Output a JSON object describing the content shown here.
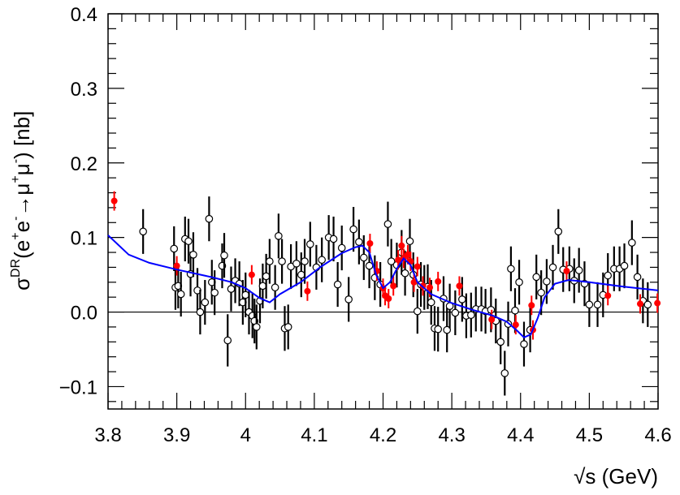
{
  "chart_data": {
    "type": "scatter",
    "title": "",
    "xlabel_html": "√s (GeV)",
    "xlabel": "√s (GeV)",
    "ylabel": "σDR(e+e−→μ+μ−) [nb]",
    "xlim": [
      3.8,
      4.6
    ],
    "ylim": [
      -0.13,
      0.4
    ],
    "xticks": [
      3.8,
      3.9,
      4.0,
      4.1,
      4.2,
      4.3,
      4.4,
      4.5,
      4.6
    ],
    "xtick_labels": [
      "3.8",
      "3.9",
      "4",
      "4.1",
      "4.2",
      "4.3",
      "4.4",
      "4.5",
      "4.6"
    ],
    "yticks": [
      -0.1,
      0.0,
      0.1,
      0.2,
      0.3,
      0.4
    ],
    "ytick_labels": [
      "−0.1",
      "0.0",
      "0.1",
      "0.2",
      "0.3",
      "0.4"
    ],
    "grid": false,
    "colors": {
      "open_series": "#000000",
      "filled_series": "#ff0000",
      "fit_curve": "#0000ff",
      "zero_line": "#000000"
    },
    "series": [
      {
        "marker": "open-circle",
        "points": [
          [
            3.851,
            0.108,
            0.03
          ],
          [
            3.896,
            0.085,
            0.03
          ],
          [
            3.898,
            0.033,
            0.03
          ],
          [
            3.902,
            0.035,
            0.03
          ],
          [
            3.906,
            0.024,
            0.03
          ],
          [
            3.912,
            0.098,
            0.03
          ],
          [
            3.917,
            0.095,
            0.03
          ],
          [
            3.92,
            0.051,
            0.03
          ],
          [
            3.924,
            0.077,
            0.03
          ],
          [
            3.93,
            0.029,
            0.03
          ],
          [
            3.934,
            0.0,
            0.03
          ],
          [
            3.941,
            0.013,
            0.03
          ],
          [
            3.947,
            0.125,
            0.03
          ],
          [
            3.951,
            0.04,
            0.03
          ],
          [
            3.955,
            0.026,
            0.03
          ],
          [
            3.966,
            0.062,
            0.03
          ],
          [
            3.969,
            0.076,
            0.03
          ],
          [
            3.974,
            -0.038,
            0.035
          ],
          [
            3.979,
            0.031,
            0.03
          ],
          [
            3.985,
            0.042,
            0.03
          ],
          [
            3.991,
            0.038,
            0.03
          ],
          [
            3.996,
            0.013,
            0.03
          ],
          [
            4.0,
            0.023,
            0.03
          ],
          [
            4.005,
            0.0,
            0.03
          ],
          [
            4.01,
            -0.005,
            0.03
          ],
          [
            4.013,
            -0.012,
            0.03
          ],
          [
            4.016,
            -0.02,
            0.03
          ],
          [
            4.021,
            0.015,
            0.03
          ],
          [
            4.025,
            0.035,
            0.03
          ],
          [
            4.03,
            0.048,
            0.03
          ],
          [
            4.035,
            0.068,
            0.03
          ],
          [
            4.043,
            0.033,
            0.03
          ],
          [
            4.048,
            0.102,
            0.03
          ],
          [
            4.053,
            0.068,
            0.03
          ],
          [
            4.057,
            -0.022,
            0.03
          ],
          [
            4.062,
            -0.02,
            0.03
          ],
          [
            4.066,
            0.061,
            0.03
          ],
          [
            4.074,
            0.065,
            0.03
          ],
          [
            4.081,
            0.05,
            0.03
          ],
          [
            4.086,
            0.068,
            0.03
          ],
          [
            4.094,
            0.091,
            0.03
          ],
          [
            4.103,
            0.06,
            0.03
          ],
          [
            4.111,
            0.07,
            0.03
          ],
          [
            4.121,
            0.1,
            0.03
          ],
          [
            4.128,
            0.098,
            0.03
          ],
          [
            4.134,
            0.037,
            0.03
          ],
          [
            4.14,
            0.086,
            0.03
          ],
          [
            4.15,
            0.017,
            0.03
          ],
          [
            4.157,
            0.111,
            0.03
          ],
          [
            4.165,
            0.094,
            0.03
          ],
          [
            4.172,
            0.073,
            0.03
          ],
          [
            4.18,
            0.062,
            0.03
          ],
          [
            4.188,
            0.046,
            0.03
          ],
          [
            4.196,
            0.037,
            0.03
          ],
          [
            4.207,
            0.118,
            0.03
          ],
          [
            4.212,
            0.068,
            0.03
          ],
          [
            4.22,
            0.063,
            0.03
          ],
          [
            4.227,
            0.08,
            0.03
          ],
          [
            4.232,
            0.052,
            0.03
          ],
          [
            4.239,
            0.095,
            0.03
          ],
          [
            4.244,
            0.05,
            0.03
          ],
          [
            4.25,
            0.001,
            0.03
          ],
          [
            4.255,
            0.037,
            0.03
          ],
          [
            4.26,
            0.033,
            0.03
          ],
          [
            4.265,
            0.034,
            0.03
          ],
          [
            4.27,
            0.013,
            0.03
          ],
          [
            4.275,
            -0.022,
            0.03
          ],
          [
            4.28,
            -0.023,
            0.03
          ],
          [
            4.288,
            0.018,
            0.03
          ],
          [
            4.293,
            -0.024,
            0.03
          ],
          [
            4.297,
            0.008,
            0.03
          ],
          [
            4.305,
            -0.001,
            0.03
          ],
          [
            4.315,
            0.017,
            0.03
          ],
          [
            4.321,
            -0.005,
            0.03
          ],
          [
            4.328,
            -0.004,
            0.03
          ],
          [
            4.335,
            0.004,
            0.03
          ],
          [
            4.343,
            0.004,
            0.03
          ],
          [
            4.349,
            0.001,
            0.03
          ],
          [
            4.357,
            0.003,
            0.03
          ],
          [
            4.364,
            -0.012,
            0.03
          ],
          [
            4.371,
            -0.04,
            0.03
          ],
          [
            4.377,
            -0.082,
            0.03
          ],
          [
            4.382,
            -0.016,
            0.03
          ],
          [
            4.386,
            0.058,
            0.03
          ],
          [
            4.392,
            0.002,
            0.03
          ],
          [
            4.398,
            0.04,
            0.03
          ],
          [
            4.405,
            -0.043,
            0.03
          ],
          [
            4.414,
            -0.024,
            0.03
          ],
          [
            4.423,
            0.047,
            0.03
          ],
          [
            4.43,
            0.026,
            0.03
          ],
          [
            4.438,
            0.041,
            0.03
          ],
          [
            4.447,
            0.06,
            0.03
          ],
          [
            4.455,
            0.108,
            0.03
          ],
          [
            4.462,
            0.057,
            0.03
          ],
          [
            4.471,
            0.058,
            0.03
          ],
          [
            4.478,
            0.042,
            0.03
          ],
          [
            4.485,
            0.056,
            0.03
          ],
          [
            4.493,
            0.038,
            0.03
          ],
          [
            4.5,
            0.01,
            0.03
          ],
          [
            4.512,
            0.01,
            0.03
          ],
          [
            4.52,
            0.023,
            0.03
          ],
          [
            4.527,
            0.049,
            0.03
          ],
          [
            4.536,
            0.058,
            0.03
          ],
          [
            4.544,
            0.058,
            0.03
          ],
          [
            4.551,
            0.062,
            0.03
          ],
          [
            4.562,
            0.093,
            0.03
          ],
          [
            4.57,
            0.047,
            0.03
          ],
          [
            4.578,
            0.015,
            0.03
          ],
          [
            4.585,
            0.01,
            0.03
          ]
        ]
      },
      {
        "marker": "filled-circle",
        "points": [
          [
            3.809,
            0.149,
            0.013
          ],
          [
            3.9,
            0.062,
            0.013
          ],
          [
            4.009,
            0.05,
            0.013
          ],
          [
            4.09,
            0.028,
            0.013
          ],
          [
            4.181,
            0.092,
            0.013
          ],
          [
            4.191,
            0.055,
            0.013
          ],
          [
            4.2,
            0.032,
            0.013
          ],
          [
            4.203,
            0.022,
            0.013
          ],
          [
            4.208,
            0.018,
            0.013
          ],
          [
            4.215,
            0.035,
            0.013
          ],
          [
            4.222,
            0.07,
            0.013
          ],
          [
            4.227,
            0.089,
            0.013
          ],
          [
            4.23,
            0.072,
            0.013
          ],
          [
            4.236,
            0.077,
            0.013
          ],
          [
            4.24,
            0.068,
            0.013
          ],
          [
            4.245,
            0.04,
            0.013
          ],
          [
            4.25,
            0.061,
            0.013
          ],
          [
            4.258,
            0.035,
            0.013
          ],
          [
            4.268,
            0.033,
            0.013
          ],
          [
            4.28,
            0.041,
            0.013
          ],
          [
            4.311,
            0.035,
            0.013
          ],
          [
            4.358,
            -0.01,
            0.013
          ],
          [
            4.393,
            -0.017,
            0.013
          ],
          [
            4.416,
            0.009,
            0.013
          ],
          [
            4.418,
            -0.024,
            0.013
          ],
          [
            4.467,
            0.055,
            0.013
          ],
          [
            4.527,
            0.022,
            0.013
          ],
          [
            4.574,
            0.011,
            0.013
          ],
          [
            4.599,
            0.012,
            0.013
          ]
        ]
      }
    ],
    "fit_curve": {
      "x": [
        3.8,
        3.83,
        3.86,
        3.9,
        3.95,
        3.98,
        4.0,
        4.02,
        4.035,
        4.05,
        4.08,
        4.11,
        4.14,
        4.16,
        4.17,
        4.18,
        4.19,
        4.2,
        4.21,
        4.22,
        4.23,
        4.24,
        4.25,
        4.27,
        4.3,
        4.33,
        4.36,
        4.38,
        4.395,
        4.405,
        4.415,
        4.425,
        4.435,
        4.45,
        4.47,
        4.5,
        4.55,
        4.6
      ],
      "y": [
        0.103,
        0.077,
        0.066,
        0.057,
        0.047,
        0.04,
        0.032,
        0.019,
        0.013,
        0.024,
        0.04,
        0.061,
        0.079,
        0.087,
        0.089,
        0.08,
        0.05,
        0.032,
        0.04,
        0.058,
        0.072,
        0.063,
        0.04,
        0.024,
        0.012,
        0.003,
        -0.005,
        -0.013,
        -0.025,
        -0.034,
        -0.03,
        -0.008,
        0.02,
        0.038,
        0.043,
        0.04,
        0.034,
        0.029
      ]
    }
  }
}
